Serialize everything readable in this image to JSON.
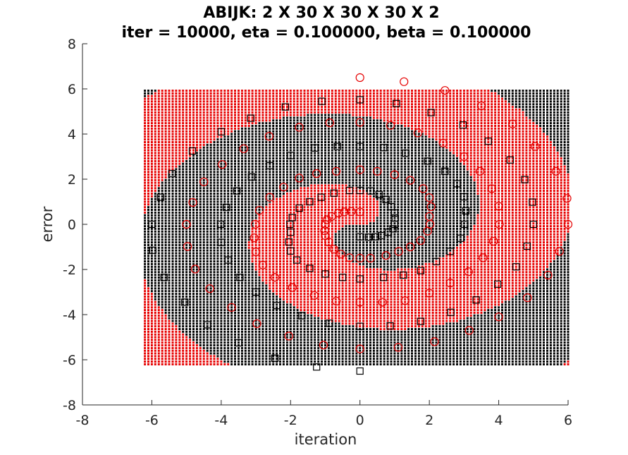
{
  "chart_data": {
    "type": "scatter",
    "title": [
      "ABIJK: 2 X 30 X 30 X 30 X 2",
      "iter = 10000, eta = 0.100000, beta = 0.100000"
    ],
    "xlabel": "iteration",
    "ylabel": "error",
    "xlim": [
      -8,
      6
    ],
    "ylim": [
      -8,
      8
    ],
    "xticks": [
      -8,
      -6,
      -4,
      -2,
      0,
      2,
      4,
      6
    ],
    "yticks": [
      -8,
      -6,
      -4,
      -2,
      0,
      2,
      4,
      6,
      8
    ],
    "grid": false,
    "colors": {
      "class_a": "#000000",
      "class_b": "#e60000",
      "axis": "#262626"
    },
    "decision_grid": {
      "x_range": [
        -6.2,
        6.0
      ],
      "y_range": [
        -6.2,
        6.0
      ],
      "x_step": 0.1,
      "y_step": 0.12,
      "classes": [
        "class_a (black dots)",
        "class_b (red dots)"
      ]
    },
    "series": [
      {
        "marker": "circle",
        "color": "#e60000",
        "points": [
          [
            0.0,
            6.5
          ],
          [
            1.27,
            6.32
          ],
          [
            2.45,
            5.93
          ],
          [
            3.5,
            5.25
          ],
          [
            4.4,
            4.45
          ],
          [
            5.05,
            3.45
          ],
          [
            5.65,
            2.35
          ],
          [
            5.97,
            1.15
          ],
          [
            6.0,
            0.0
          ],
          [
            5.75,
            -1.2
          ],
          [
            5.42,
            -2.25
          ],
          [
            4.83,
            -3.25
          ],
          [
            4.0,
            -4.1
          ],
          [
            3.15,
            -4.7
          ],
          [
            2.15,
            -5.2
          ],
          [
            1.1,
            -5.45
          ],
          [
            0.0,
            -5.52
          ],
          [
            -1.05,
            -5.35
          ],
          [
            -2.05,
            -4.95
          ],
          [
            -2.97,
            -4.4
          ],
          [
            -3.7,
            -3.68
          ],
          [
            -4.33,
            -2.85
          ],
          [
            -4.75,
            -1.98
          ],
          [
            -4.97,
            -0.98
          ],
          [
            -5.0,
            0.0
          ],
          [
            -4.82,
            0.97
          ],
          [
            -4.5,
            1.88
          ],
          [
            -3.97,
            2.65
          ],
          [
            -3.35,
            3.35
          ],
          [
            -2.62,
            3.9
          ],
          [
            -1.75,
            4.3
          ],
          [
            -0.87,
            4.5
          ],
          [
            0.0,
            4.52
          ],
          [
            0.88,
            4.38
          ],
          [
            1.67,
            4.05
          ],
          [
            2.4,
            3.6
          ],
          [
            3.0,
            3.0
          ],
          [
            3.46,
            2.35
          ],
          [
            3.8,
            1.58
          ],
          [
            4.0,
            0.8
          ],
          [
            4.02,
            0.0
          ],
          [
            3.85,
            -0.75
          ],
          [
            3.55,
            -1.48
          ],
          [
            3.13,
            -2.1
          ],
          [
            2.6,
            -2.6
          ],
          [
            2.0,
            -3.05
          ],
          [
            1.3,
            -3.38
          ],
          [
            0.65,
            -3.45
          ],
          [
            0.0,
            -3.45
          ],
          [
            -0.68,
            -3.4
          ],
          [
            -1.32,
            -3.15
          ],
          [
            -1.95,
            -2.8
          ],
          [
            -2.45,
            -2.35
          ],
          [
            -2.8,
            -1.8
          ],
          [
            -3.0,
            -1.22
          ],
          [
            -3.05,
            -0.6
          ],
          [
            -3.02,
            0.0
          ],
          [
            -2.9,
            0.62
          ],
          [
            -2.6,
            1.2
          ],
          [
            -2.2,
            1.65
          ],
          [
            -1.75,
            2.05
          ],
          [
            -1.25,
            2.25
          ],
          [
            -0.68,
            2.35
          ],
          [
            0.0,
            2.42
          ],
          [
            0.5,
            2.35
          ],
          [
            1.0,
            2.2
          ],
          [
            1.45,
            1.95
          ],
          [
            1.82,
            1.58
          ],
          [
            2.0,
            1.18
          ],
          [
            2.05,
            0.78
          ],
          [
            2.0,
            0.35
          ],
          [
            2.02,
            0.0
          ],
          [
            1.95,
            -0.3
          ],
          [
            1.75,
            -0.72
          ],
          [
            1.45,
            -1.0
          ],
          [
            1.12,
            -1.2
          ],
          [
            0.75,
            -1.38
          ],
          [
            0.3,
            -1.5
          ],
          [
            0.0,
            -1.5
          ],
          [
            -0.3,
            -1.48
          ],
          [
            -0.55,
            -1.32
          ],
          [
            -0.75,
            -1.1
          ],
          [
            -0.9,
            -0.78
          ],
          [
            -1.0,
            -0.5
          ],
          [
            -1.02,
            -0.28
          ],
          [
            -1.0,
            0.0
          ],
          [
            -0.95,
            0.2
          ],
          [
            -0.82,
            0.35
          ],
          [
            -0.62,
            0.5
          ],
          [
            -0.45,
            0.55
          ],
          [
            -0.25,
            0.57
          ],
          [
            0.0,
            0.55
          ]
        ]
      },
      {
        "marker": "square",
        "color": "#000000",
        "points": [
          [
            0.0,
            -6.5
          ],
          [
            -1.25,
            -6.32
          ],
          [
            -2.45,
            -5.93
          ],
          [
            -3.5,
            -5.25
          ],
          [
            -4.4,
            -4.45
          ],
          [
            -5.05,
            -3.45
          ],
          [
            -5.65,
            -2.35
          ],
          [
            -5.97,
            -1.15
          ],
          [
            -6.0,
            0.0
          ],
          [
            -5.75,
            1.2
          ],
          [
            -5.42,
            2.25
          ],
          [
            -4.83,
            3.25
          ],
          [
            -4.0,
            4.1
          ],
          [
            -3.15,
            4.7
          ],
          [
            -2.15,
            5.2
          ],
          [
            -1.1,
            5.45
          ],
          [
            0.0,
            5.52
          ],
          [
            1.05,
            5.35
          ],
          [
            2.05,
            4.95
          ],
          [
            2.97,
            4.4
          ],
          [
            3.7,
            3.68
          ],
          [
            4.33,
            2.85
          ],
          [
            4.75,
            1.98
          ],
          [
            4.97,
            0.98
          ],
          [
            5.0,
            0.0
          ],
          [
            4.82,
            -0.97
          ],
          [
            4.5,
            -1.88
          ],
          [
            3.97,
            -2.65
          ],
          [
            3.35,
            -3.35
          ],
          [
            2.62,
            -3.9
          ],
          [
            1.75,
            -4.3
          ],
          [
            0.87,
            -4.5
          ],
          [
            0.0,
            -4.52
          ],
          [
            -0.88,
            -4.38
          ],
          [
            -1.67,
            -4.05
          ],
          [
            -2.4,
            -3.6
          ],
          [
            -3.0,
            -3.0
          ],
          [
            -3.46,
            -2.35
          ],
          [
            -3.8,
            -1.58
          ],
          [
            -4.0,
            -0.8
          ],
          [
            -4.02,
            0.0
          ],
          [
            -3.85,
            0.75
          ],
          [
            -3.55,
            1.48
          ],
          [
            -3.13,
            2.1
          ],
          [
            -2.6,
            2.6
          ],
          [
            -2.0,
            3.05
          ],
          [
            -1.3,
            3.38
          ],
          [
            -0.65,
            3.45
          ],
          [
            0.0,
            3.45
          ],
          [
            0.68,
            3.4
          ],
          [
            1.32,
            3.15
          ],
          [
            1.95,
            2.8
          ],
          [
            2.45,
            2.35
          ],
          [
            2.8,
            1.8
          ],
          [
            3.0,
            1.22
          ],
          [
            3.05,
            0.6
          ],
          [
            3.02,
            0.0
          ],
          [
            2.9,
            -0.62
          ],
          [
            2.6,
            -1.2
          ],
          [
            2.2,
            -1.65
          ],
          [
            1.75,
            -2.05
          ],
          [
            1.25,
            -2.25
          ],
          [
            0.68,
            -2.35
          ],
          [
            0.0,
            -2.42
          ],
          [
            -0.5,
            -2.35
          ],
          [
            -1.0,
            -2.2
          ],
          [
            -1.45,
            -1.95
          ],
          [
            -1.82,
            -1.58
          ],
          [
            -2.0,
            -1.18
          ],
          [
            -2.05,
            -0.78
          ],
          [
            -2.0,
            -0.35
          ],
          [
            -2.02,
            0.0
          ],
          [
            -1.95,
            0.3
          ],
          [
            -1.75,
            0.72
          ],
          [
            -1.45,
            1.0
          ],
          [
            -1.12,
            1.2
          ],
          [
            -0.75,
            1.38
          ],
          [
            -0.3,
            1.5
          ],
          [
            0.0,
            1.5
          ],
          [
            0.3,
            1.48
          ],
          [
            0.55,
            1.32
          ],
          [
            0.75,
            1.1
          ],
          [
            0.9,
            0.78
          ],
          [
            1.0,
            0.5
          ],
          [
            1.02,
            0.28
          ],
          [
            1.0,
            0.0
          ],
          [
            0.95,
            -0.2
          ],
          [
            0.82,
            -0.35
          ],
          [
            0.62,
            -0.5
          ],
          [
            0.45,
            -0.55
          ],
          [
            0.25,
            -0.57
          ],
          [
            0.0,
            -0.55
          ]
        ]
      }
    ]
  }
}
